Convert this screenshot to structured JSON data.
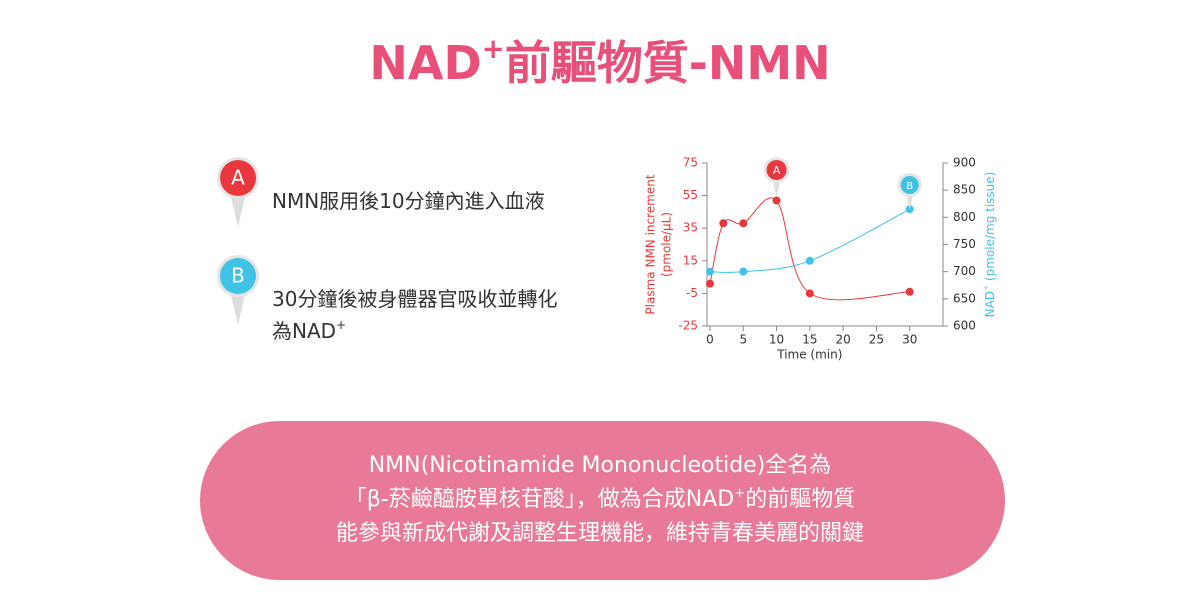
{
  "header": {
    "title": [
      "NAD",
      "+",
      "前驅物質-NMN"
    ]
  },
  "callouts": [
    {
      "badge": "A",
      "lines": [
        [
          "NMN服用後10分鐘內進入血液"
        ]
      ]
    },
    {
      "badge": "B",
      "lines": [
        [
          "30分鐘後被身體器官吸收並轉化"
        ],
        [
          "為NAD",
          "+"
        ]
      ]
    }
  ],
  "chart_data": {
    "type": "line",
    "x": [
      0,
      2,
      5,
      10,
      15,
      30
    ],
    "series": [
      {
        "name": "Plasma NMN",
        "color": "#e8383d",
        "x": [
          0,
          2,
          5,
          10,
          15,
          30
        ],
        "values": [
          1,
          38,
          38,
          52,
          -5,
          -4
        ]
      },
      {
        "name": "NAD+",
        "color": "#3ec3e6",
        "axis": "y2",
        "x": [
          0,
          5,
          15,
          30
        ],
        "values": [
          700,
          700,
          720,
          815
        ]
      }
    ],
    "xlabel": "Time (min)",
    "ylabel": [
      "Plasma NMN increment",
      "(pmole/μL)"
    ],
    "y2label": [
      "NAD",
      "+",
      " (pmole/mg tissue)"
    ],
    "xlim": [
      0,
      35
    ],
    "xticks": [
      0,
      5,
      10,
      15,
      20,
      25,
      30
    ],
    "ylim": [
      -25,
      75
    ],
    "yticks": [
      -25,
      -5,
      15,
      35,
      55,
      75
    ],
    "y2lim": [
      600,
      900
    ],
    "y2ticks": [
      600,
      650,
      700,
      750,
      800,
      850,
      900
    ]
  },
  "footer": {
    "lines": [
      [
        "NMN(Nicotinamide Mononucleotide)全名為"
      ],
      [
        "「β-菸鹼醯胺單核苷酸」，做為合成NAD",
        "+",
        "的前驅物質"
      ],
      [
        "能參與新成代謝及調整生理機能，維持青春美麗的關鍵"
      ]
    ]
  }
}
